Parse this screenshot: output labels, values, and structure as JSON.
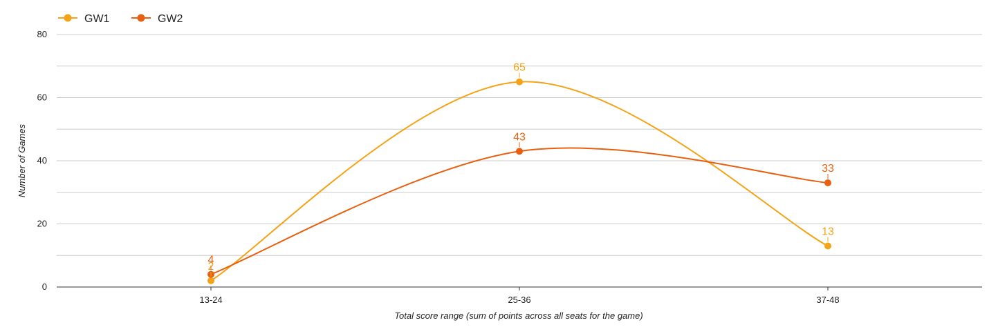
{
  "chart_data": {
    "type": "line",
    "title": "",
    "xlabel": "Total score range (sum of points across all seats for the game)",
    "ylabel": "Number of Games",
    "categories": [
      "13-24",
      "25-36",
      "37-48"
    ],
    "series": [
      {
        "name": "GW1",
        "values": [
          2,
          65,
          13
        ],
        "color": "#F4A316"
      },
      {
        "name": "GW2",
        "values": [
          4,
          43,
          33
        ],
        "color": "#E8600F"
      }
    ],
    "ylim": [
      0,
      80
    ],
    "y_ticks": [
      0,
      20,
      40,
      60,
      80
    ],
    "grid": true,
    "legend_position": "top-left",
    "smooth": true,
    "data_labels": true
  }
}
